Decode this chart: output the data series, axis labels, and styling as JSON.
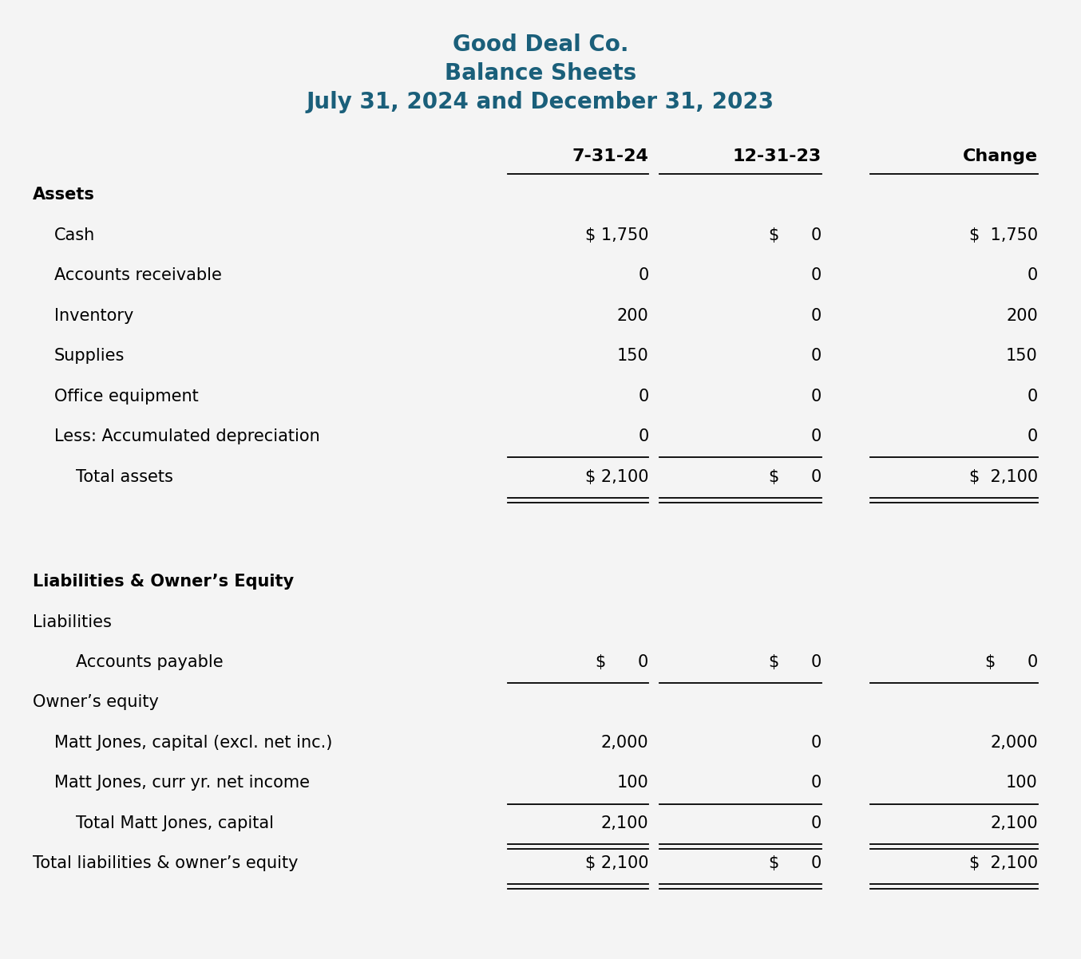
{
  "title_lines": [
    "Good Deal Co.",
    "Balance Sheets",
    "July 31, 2024 and December 31, 2023"
  ],
  "title_color": "#1a5f7a",
  "bg_color": "#f4f4f4",
  "text_color": "#000000",
  "col_headers": [
    "7-31-24",
    "12-31-23",
    "Change"
  ],
  "figsize": [
    13.54,
    12.02
  ],
  "dpi": 100,
  "assets_rows": [
    {
      "label": "Cash",
      "indent": 1,
      "c1": "$ 1,750",
      "c2": "$      0",
      "c3": "$  1,750",
      "underline": false,
      "double_underline": false
    },
    {
      "label": "Accounts receivable",
      "indent": 1,
      "c1": "0",
      "c2": "0",
      "c3": "0",
      "underline": false,
      "double_underline": false
    },
    {
      "label": "Inventory",
      "indent": 1,
      "c1": "200",
      "c2": "0",
      "c3": "200",
      "underline": false,
      "double_underline": false
    },
    {
      "label": "Supplies",
      "indent": 1,
      "c1": "150",
      "c2": "0",
      "c3": "150",
      "underline": false,
      "double_underline": false
    },
    {
      "label": "Office equipment",
      "indent": 1,
      "c1": "0",
      "c2": "0",
      "c3": "0",
      "underline": false,
      "double_underline": false
    },
    {
      "label": "Less: Accumulated depreciation",
      "indent": 1,
      "c1": "0",
      "c2": "0",
      "c3": "0",
      "underline": true,
      "double_underline": false
    },
    {
      "label": "Total assets",
      "indent": 2,
      "c1": "$ 2,100",
      "c2": "$      0",
      "c3": "$  2,100",
      "underline": false,
      "double_underline": true
    }
  ],
  "liabilities_rows": [
    {
      "label": "Accounts payable",
      "indent": 2,
      "c1": "$      0",
      "c2": "$      0",
      "c3": "$      0",
      "underline": true,
      "double_underline": false,
      "section_break_before": false
    },
    {
      "label": "Owner’s equity",
      "indent": 0,
      "c1": "",
      "c2": "",
      "c3": "",
      "underline": false,
      "double_underline": false,
      "section_break_before": false
    },
    {
      "label": "Matt Jones, capital (excl. net inc.)",
      "indent": 1,
      "c1": "2,000",
      "c2": "0",
      "c3": "2,000",
      "underline": false,
      "double_underline": false,
      "section_break_before": false
    },
    {
      "label": "Matt Jones, curr yr. net income",
      "indent": 1,
      "c1": "100",
      "c2": "0",
      "c3": "100",
      "underline": true,
      "double_underline": false,
      "section_break_before": false
    },
    {
      "label": "Total Matt Jones, capital",
      "indent": 2,
      "c1": "2,100",
      "c2": "0",
      "c3": "2,100",
      "underline": false,
      "double_underline": true,
      "section_break_before": false
    },
    {
      "label": "Total liabilities & owner’s equity",
      "indent": 0,
      "c1": "$ 2,100",
      "c2": "$      0",
      "c3": "$  2,100",
      "underline": false,
      "double_underline": true,
      "section_break_before": false
    }
  ]
}
